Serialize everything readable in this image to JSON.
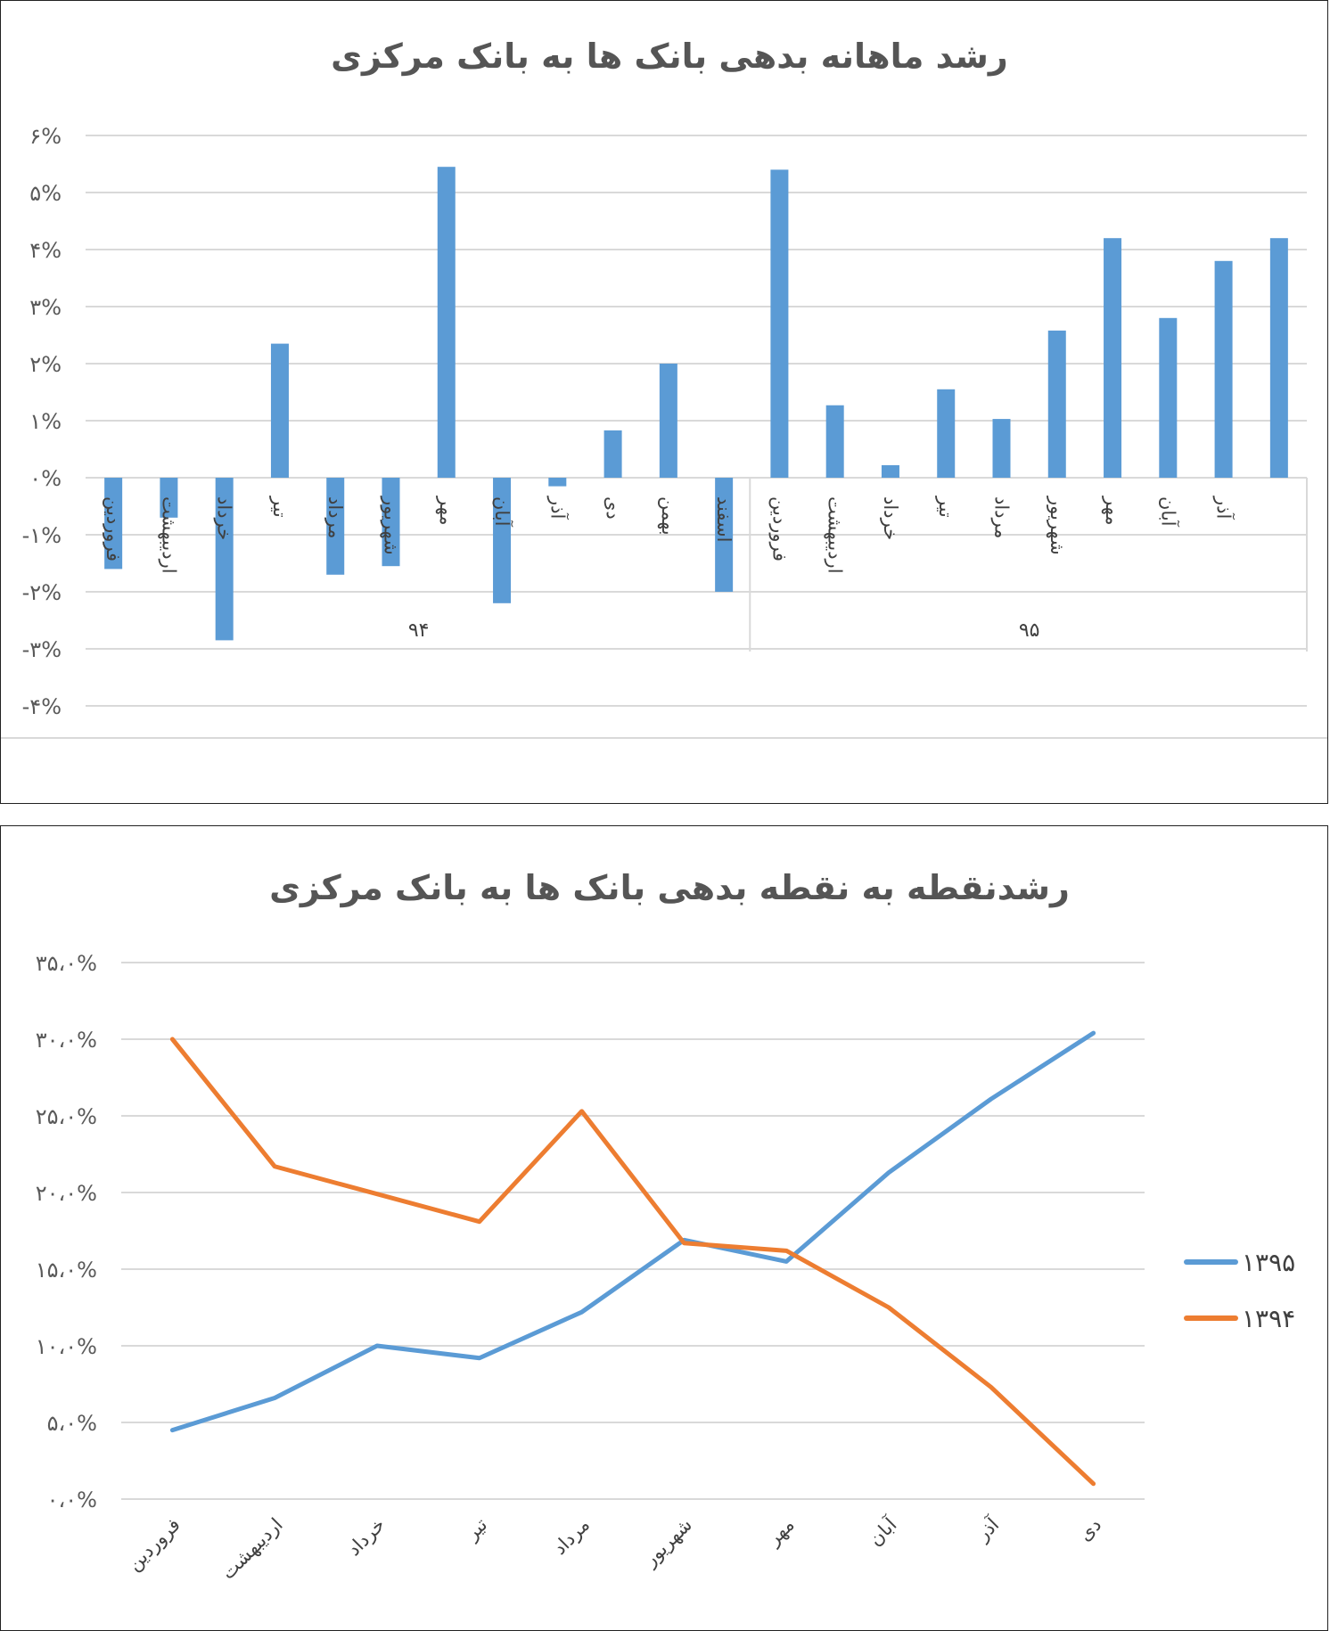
{
  "chart_data": [
    {
      "type": "bar",
      "title": "رشد ماهانه بدهی بانک ها به بانک مرکزی",
      "y_tick_labels": [
        "-۴%",
        "-۳%",
        "-۲%",
        "-۱%",
        "۰%",
        "۱%",
        "۲%",
        "۳%",
        "۴%",
        "۵%",
        "۶%"
      ],
      "ylim": [
        -4,
        6
      ],
      "grid": true,
      "color": "#5B9BD5",
      "groups": [
        {
          "label": "۹۴",
          "categories": [
            "فروردین",
            "اردیبهشت",
            "خرداد",
            "تیر",
            "مرداد",
            "شهریور",
            "مهر",
            "آبان",
            "آذر",
            "دی",
            "بهمن",
            "اسفند"
          ]
        },
        {
          "label": "۹۵",
          "categories": [
            "فروردین",
            "اردیبهشت",
            "خرداد",
            "تیر",
            "مرداد",
            "شهریور",
            "مهر",
            "آبان",
            "آذر",
            "دی"
          ]
        }
      ],
      "category_labels": [
        "فروردین",
        "اردیبهشت",
        "خرداد",
        "تیر",
        "مرداد",
        "شهریور",
        "مهر",
        "آبان",
        "آذر",
        "دی",
        "بهمن",
        "اسفند",
        "فروردین",
        "اردیبهشت",
        "خرداد",
        "تیر",
        "مرداد",
        "شهریور",
        "مهر",
        "آبان",
        "آذر",
        ""
      ],
      "values": [
        -1.6,
        -0.7,
        -2.85,
        2.35,
        -1.7,
        -1.55,
        5.45,
        -2.2,
        -0.15,
        0.83,
        2.0,
        -2.0,
        5.4,
        1.27,
        0.22,
        1.55,
        1.03,
        2.58,
        4.2,
        2.8,
        3.8,
        4.2
      ]
    },
    {
      "type": "line",
      "title": "رشدنقطه به نقطه بدهی بانک ها به بانک مرکزی",
      "categories": [
        "فروردین",
        "اردیبهشت",
        "خرداد",
        "تیر",
        "مرداد",
        "شهریور",
        "مهر",
        "آبان",
        "آذر",
        "دی"
      ],
      "y_tick_labels": [
        "۰،۰%",
        "۵،۰%",
        "۱۰،۰%",
        "۱۵،۰%",
        "۲۰،۰%",
        "۲۵،۰%",
        "۳۰،۰%",
        "۳۵،۰%"
      ],
      "ylim": [
        0,
        35
      ],
      "grid": true,
      "legend_position": "right",
      "series": [
        {
          "name": "۱۳۹۵",
          "color": "#5B9BD5",
          "values": [
            4.5,
            6.6,
            10.0,
            9.2,
            12.2,
            16.9,
            15.5,
            21.3,
            26.1,
            30.4
          ]
        },
        {
          "name": "۱۳۹۴",
          "color": "#ED7D31",
          "values": [
            30.0,
            21.7,
            19.9,
            18.1,
            25.3,
            16.7,
            16.2,
            12.5,
            7.3,
            1.0
          ]
        }
      ]
    }
  ]
}
